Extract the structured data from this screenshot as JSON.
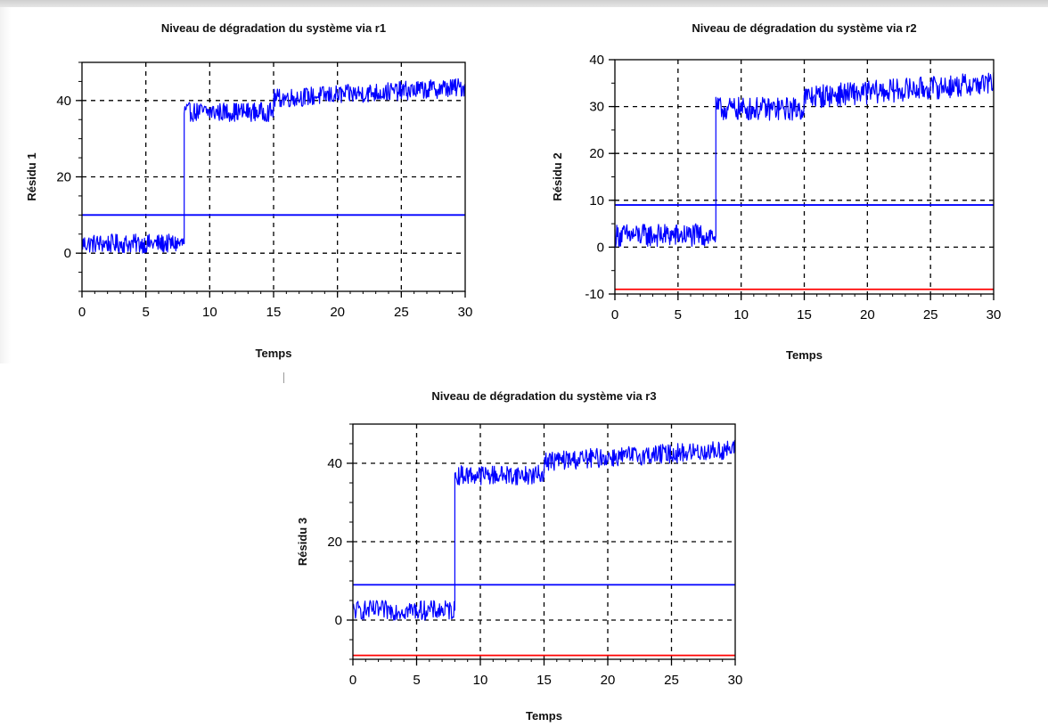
{
  "chart_data": [
    {
      "type": "line",
      "title": "Niveau de dégradation du système via r1",
      "xlabel": "Temps",
      "ylabel": "Résidu 1",
      "xlim": [
        0,
        30
      ],
      "ylim": [
        -10,
        50
      ],
      "xticks": [
        "0",
        "5",
        "10",
        "15",
        "20",
        "25",
        "30"
      ],
      "yticks": [
        "0",
        "20",
        "40"
      ],
      "grid": true,
      "series": [
        {
          "color": "#0000ff",
          "x": [
            0,
            8,
            8,
            15,
            15,
            30
          ],
          "y": [
            2.5,
            2.5,
            37,
            37,
            40.5,
            43.5
          ],
          "noise_amplitude": 2.5,
          "style": "noisy-step"
        },
        {
          "color": "#0000ff",
          "x": [
            0,
            30
          ],
          "y": [
            10,
            10
          ],
          "style": "threshold"
        }
      ]
    },
    {
      "type": "line",
      "title": "Niveau de dégradation du système via r2",
      "xlabel": "Temps",
      "ylabel": "Résidu 2",
      "xlim": [
        0,
        30
      ],
      "ylim": [
        -10,
        40
      ],
      "xticks": [
        "0",
        "5",
        "10",
        "15",
        "20",
        "25",
        "30"
      ],
      "yticks": [
        "-10",
        "0",
        "10",
        "20",
        "30",
        "40"
      ],
      "grid": true,
      "series": [
        {
          "color": "#0000ff",
          "x": [
            0,
            8,
            8,
            15,
            15,
            30
          ],
          "y": [
            2.5,
            2.5,
            29.5,
            29.5,
            32,
            35
          ],
          "noise_amplitude": 2.5,
          "style": "noisy-step"
        },
        {
          "color": "#0000ff",
          "x": [
            0,
            30
          ],
          "y": [
            9,
            9
          ],
          "style": "threshold"
        },
        {
          "color": "#ff0000",
          "x": [
            0,
            30
          ],
          "y": [
            -9,
            -9
          ],
          "style": "threshold"
        }
      ]
    },
    {
      "type": "line",
      "title": "Niveau de dégradation du système via r3",
      "xlabel": "Temps",
      "ylabel": "Résidu 3",
      "xlim": [
        0,
        30
      ],
      "ylim": [
        -10,
        50
      ],
      "xticks": [
        "0",
        "5",
        "10",
        "15",
        "20",
        "25",
        "30"
      ],
      "yticks": [
        "0",
        "20",
        "40"
      ],
      "grid": true,
      "series": [
        {
          "color": "#0000ff",
          "x": [
            0,
            8,
            8,
            15,
            15,
            30
          ],
          "y": [
            2.5,
            2.5,
            37,
            37,
            40.5,
            43.5
          ],
          "noise_amplitude": 2.5,
          "style": "noisy-step"
        },
        {
          "color": "#0000ff",
          "x": [
            0,
            30
          ],
          "y": [
            9,
            9
          ],
          "style": "threshold"
        },
        {
          "color": "#ff0000",
          "x": [
            0,
            30
          ],
          "y": [
            -9,
            -9
          ],
          "style": "threshold"
        }
      ]
    }
  ]
}
